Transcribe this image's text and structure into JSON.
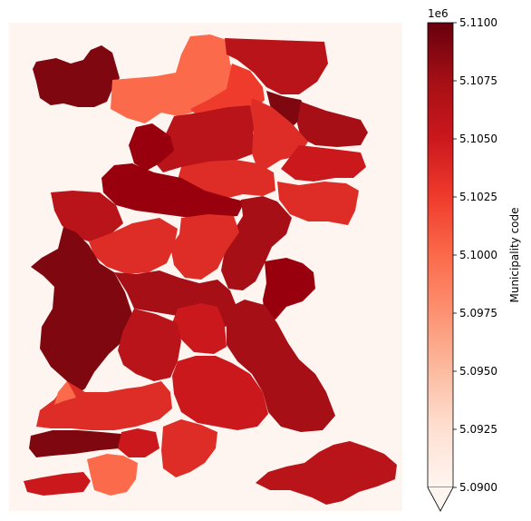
{
  "colorbar": {
    "label": "Municipality code",
    "offset_text": "1e6",
    "min": 5.09,
    "max": 5.11,
    "ticks": [
      {
        "value": 5.09,
        "label": "5.0900"
      },
      {
        "value": 5.0925,
        "label": "5.0925"
      },
      {
        "value": 5.095,
        "label": "5.0950"
      },
      {
        "value": 5.0975,
        "label": "5.0975"
      },
      {
        "value": 5.1,
        "label": "5.1000"
      },
      {
        "value": 5.1025,
        "label": "5.1025"
      },
      {
        "value": 5.105,
        "label": "5.1050"
      },
      {
        "value": 5.1075,
        "label": "5.1075"
      },
      {
        "value": 5.11,
        "label": "5.1100"
      }
    ],
    "extend": "min",
    "colormap": "Reds"
  },
  "map": {
    "background_color": "#fff5f0",
    "colors": {
      "darkest": "#67000d",
      "very_dark": "#7f0810",
      "dark": "#99000d",
      "dark_red": "#a50f15",
      "red": "#b81419",
      "mid_red": "#cb181d",
      "light_red": "#de2d26",
      "orange_red": "#ef3b2c",
      "salmon": "#fb6a4a"
    }
  }
}
